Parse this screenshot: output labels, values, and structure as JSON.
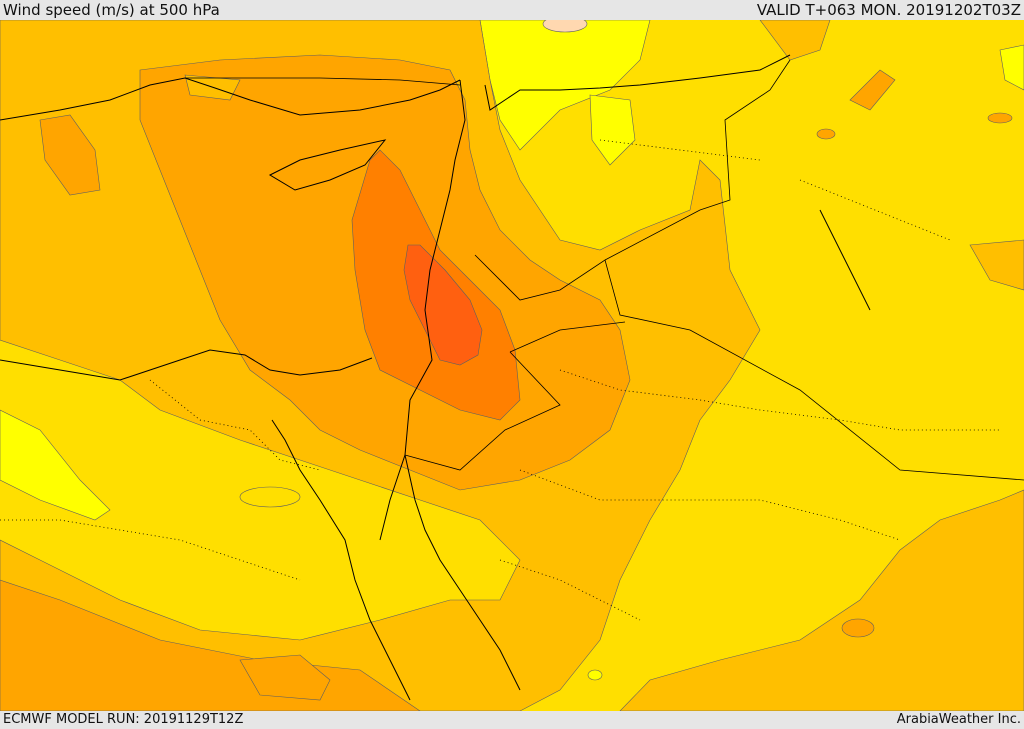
{
  "header": {
    "title": "Wind speed (m/s) at 500 hPa",
    "valid": "VALID T+063 MON. 20191202T03Z"
  },
  "footer": {
    "model_run": "ECMWF MODEL RUN: 20191129T12Z",
    "provider": "ArabiaWeather Inc."
  },
  "colors": {
    "band_1": "#ffff00",
    "band_2": "#ffdf00",
    "band_3": "#ffbf00",
    "band_4": "#ffa500",
    "band_5": "#ff8000",
    "band_6": "#ff6010",
    "band_7": "#ffd8b0",
    "borders": "#000000",
    "contour": "#606060"
  }
}
